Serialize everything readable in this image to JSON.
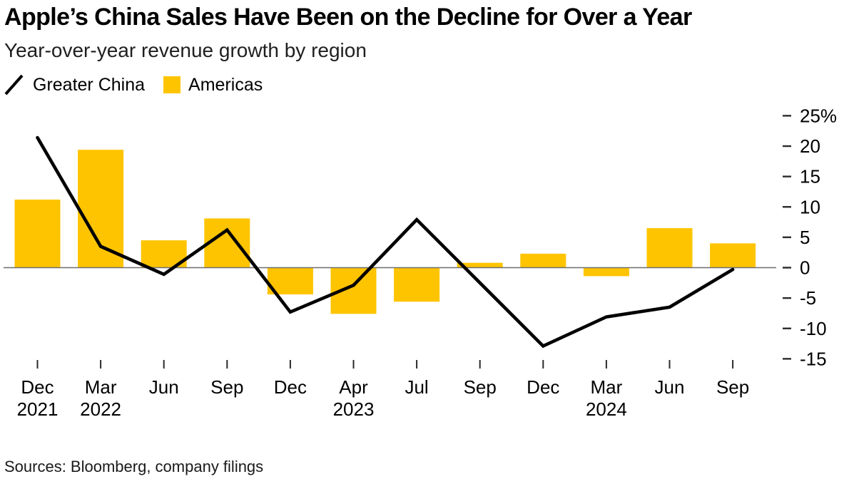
{
  "colors": {
    "bar": "#FFC400",
    "line": "#000000",
    "axis_line": "#6E6E6E",
    "tick": "#2B2B2B",
    "text": "#000000"
  },
  "chart_data": {
    "type": "combo",
    "title": "Apple’s China Sales Have Been on the Decline for Over a Year",
    "subtitle": "Year-over-year revenue growth by region",
    "source": "Sources: Bloomberg, company filings",
    "grid": false,
    "legend_position": "top-left",
    "legend": [
      {
        "label": "Greater China",
        "marker": "line"
      },
      {
        "label": "Americas",
        "marker": "square"
      }
    ],
    "categories": [
      {
        "month": "Dec",
        "year": "2021"
      },
      {
        "month": "Mar",
        "year": "2022"
      },
      {
        "month": "Jun",
        "year": null
      },
      {
        "month": "Sep",
        "year": null
      },
      {
        "month": "Dec",
        "year": null
      },
      {
        "month": "Apr",
        "year": "2023"
      },
      {
        "month": "Jul",
        "year": null
      },
      {
        "month": "Sep",
        "year": null
      },
      {
        "month": "Dec",
        "year": null
      },
      {
        "month": "Mar",
        "year": "2024"
      },
      {
        "month": "Jun",
        "year": null
      },
      {
        "month": "Sep",
        "year": null
      }
    ],
    "series": [
      {
        "name": "Greater China",
        "type": "line",
        "color": "#000000",
        "values": [
          21.4,
          3.5,
          -1.1,
          6.2,
          -7.3,
          -2.9,
          7.9,
          -2.5,
          -12.9,
          -8.1,
          -6.5,
          -0.3
        ]
      },
      {
        "name": "Americas",
        "type": "bar",
        "color": "#FFC400",
        "values": [
          11.2,
          19.4,
          4.5,
          8.1,
          -4.4,
          -7.6,
          -5.6,
          0.8,
          2.3,
          -1.4,
          6.5,
          4.0
        ]
      }
    ],
    "y_axis": {
      "side": "right",
      "tick_values": [
        25,
        20,
        15,
        10,
        5,
        0,
        -5,
        -10,
        -15
      ],
      "tick_labels": [
        "25%",
        "20",
        "15",
        "10",
        "5",
        "0",
        "-5",
        "-10",
        "-15"
      ],
      "ylim": [
        -16.5,
        25.8
      ]
    }
  }
}
